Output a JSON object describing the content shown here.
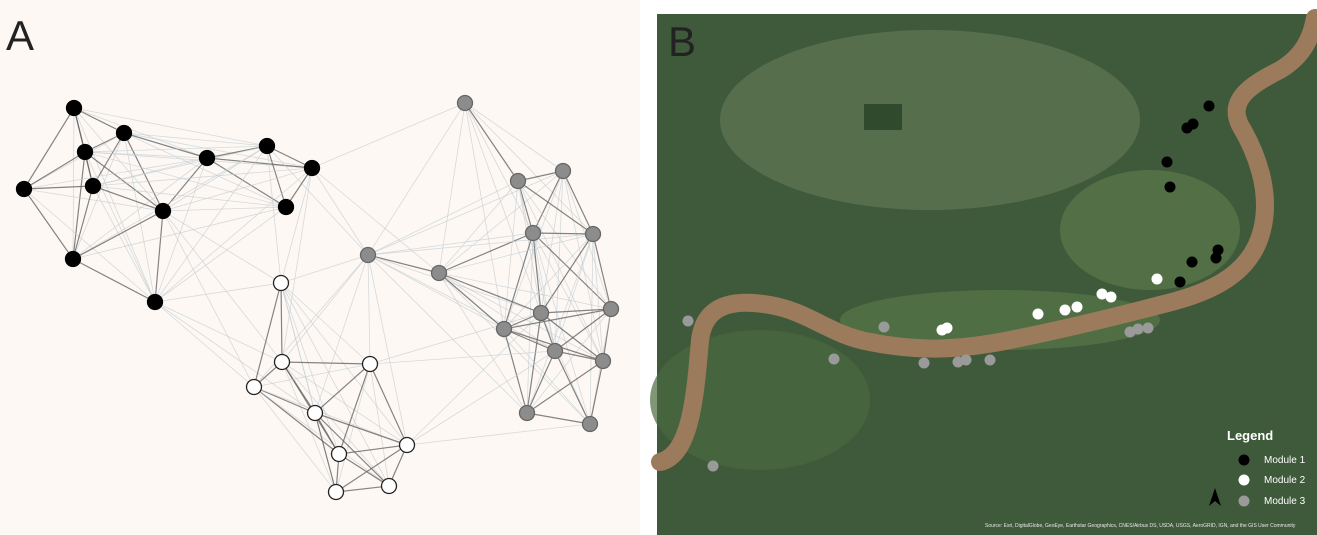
{
  "panels": [
    {
      "label": "A"
    },
    {
      "label": "B"
    }
  ],
  "legend": {
    "title": "Legend",
    "entries": [
      "Module 1",
      "Module 2",
      "Module 3"
    ]
  },
  "attribution": "Source: Esri, DigitalGlobe, GeoEye, Earthstar Geographics, CNES/Airbus DS, USDA, USGS, AeroGRID, IGN, and the GIS User Community"
}
